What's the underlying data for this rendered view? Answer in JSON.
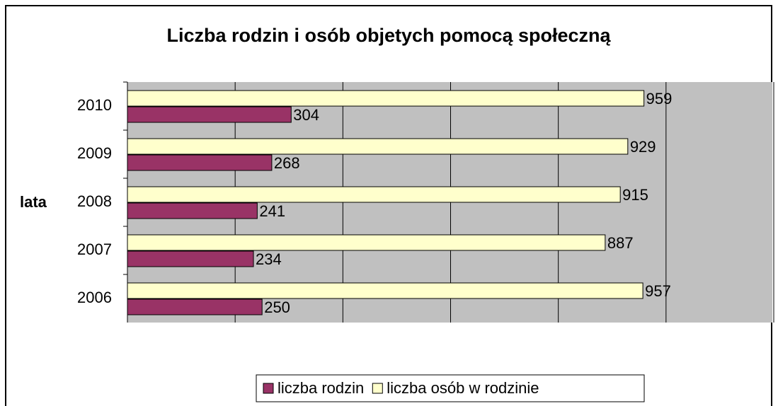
{
  "chart_data": {
    "type": "hbar",
    "title": "Liczba rodzin i osób objetych pomocą społeczną",
    "y_label": "lata",
    "categories": [
      "2010",
      "2009",
      "2008",
      "2007",
      "2006"
    ],
    "series": [
      {
        "name": "liczba rodzin",
        "color": "#993366",
        "values": [
          304,
          268,
          241,
          234,
          250
        ]
      },
      {
        "name": "liczba osób w rodzinie",
        "color": "#ffffcc",
        "values": [
          959,
          929,
          915,
          887,
          957
        ]
      }
    ],
    "xlim": [
      0,
      1200
    ],
    "xticks": [
      0,
      200,
      400,
      600,
      800,
      1000,
      1200
    ],
    "grid": true,
    "legend": "bottom"
  }
}
